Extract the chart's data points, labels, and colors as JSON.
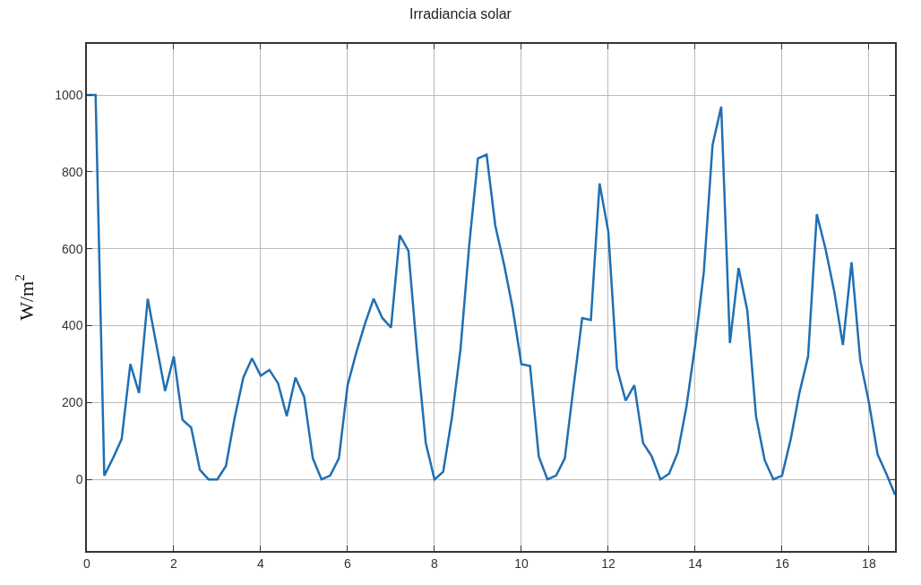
{
  "chart_data": {
    "type": "line",
    "title": "Irradiancia solar",
    "ylabel": "W/m$^{2}$",
    "x": [
      0,
      0.2,
      0.4,
      0.6,
      0.8,
      1.0,
      1.2,
      1.4,
      1.6,
      1.8,
      2.0,
      2.2,
      2.4,
      2.6,
      2.8,
      3.0,
      3.2,
      3.4,
      3.6,
      3.8,
      4.0,
      4.2,
      4.4,
      4.6,
      4.8,
      5.0,
      5.2,
      5.4,
      5.6,
      5.8,
      6.0,
      6.2,
      6.4,
      6.6,
      6.8,
      7.0,
      7.2,
      7.4,
      7.6,
      7.8,
      8.0,
      8.2,
      8.4,
      8.6,
      8.8,
      9.0,
      9.2,
      9.4,
      9.6,
      9.8,
      10.0,
      10.2,
      10.4,
      10.6,
      10.8,
      11.0,
      11.2,
      11.4,
      11.6,
      11.8,
      12.0,
      12.2,
      12.4,
      12.6,
      12.8,
      13.0,
      13.2,
      13.4,
      13.6,
      13.8,
      14.0,
      14.2,
      14.4,
      14.6,
      14.8,
      15.0,
      15.2,
      15.4,
      15.6,
      15.8,
      16.0,
      16.2,
      16.4,
      16.6,
      16.8,
      17.0,
      17.2,
      17.4,
      17.6,
      17.8,
      18.0,
      18.2,
      18.4,
      18.6
    ],
    "series": [
      {
        "color": "#1f6fb4",
        "values": [
          1000,
          1000,
          10,
          55,
          105,
          300,
          225,
          470,
          350,
          230,
          320,
          155,
          135,
          25,
          0,
          0,
          35,
          160,
          265,
          315,
          270,
          285,
          250,
          165,
          265,
          215,
          55,
          0,
          10,
          55,
          245,
          330,
          405,
          470,
          420,
          395,
          635,
          595,
          330,
          95,
          0,
          20,
          160,
          340,
          610,
          835,
          845,
          660,
          560,
          445,
          300,
          295,
          60,
          0,
          10,
          55,
          240,
          420,
          415,
          770,
          645,
          290,
          205,
          245,
          95,
          60,
          0,
          15,
          70,
          190,
          350,
          540,
          870,
          970,
          355,
          550,
          440,
          165,
          50,
          0,
          10,
          105,
          225,
          320,
          690,
          600,
          490,
          350,
          565,
          310,
          200,
          65,
          15,
          -40
        ]
      }
    ],
    "xlim": [
      0,
      18.6
    ],
    "xticks": [
      0,
      2,
      4,
      6,
      8,
      10,
      12,
      14,
      16,
      18
    ],
    "ylim": [
      -186,
      1133
    ],
    "yticks": [
      0,
      200,
      400,
      600,
      800,
      1000
    ],
    "grid": true,
    "marker": "none",
    "line_style": "solid"
  }
}
